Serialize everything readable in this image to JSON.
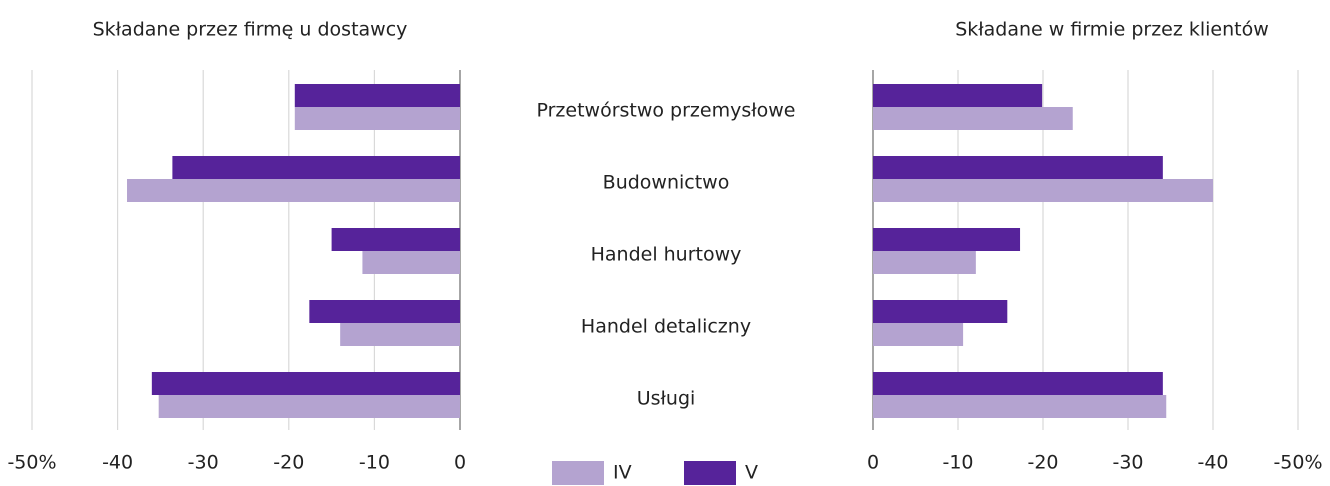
{
  "chart_data": [
    {
      "type": "bar",
      "orientation": "horizontal",
      "title": "Składane przez firmę u dostawcy",
      "categories": [
        "Przetwórstwo przemysłowe",
        "Budownictwo",
        "Handel hurtowy",
        "Handel detaliczny",
        "Usługi"
      ],
      "series": [
        {
          "name": "IV",
          "color": "#b4a3d0",
          "values": [
            -19.3,
            -38.9,
            -11.4,
            -14.0,
            -35.2
          ]
        },
        {
          "name": "V",
          "color": "#56239a",
          "values": [
            -19.3,
            -33.6,
            -15.0,
            -17.6,
            -36.0
          ]
        }
      ],
      "xlim": [
        -50,
        0
      ],
      "xticks": [
        {
          "value": -50,
          "label": "-50%"
        },
        -40,
        -30,
        -20,
        -10,
        0
      ],
      "grid": true
    },
    {
      "type": "bar",
      "orientation": "horizontal",
      "title": "Składane w firmie przez klientów",
      "series": [
        {
          "color": "#b4a3d0",
          "values": [
            -23.5,
            -40.0,
            -12.1,
            -10.6,
            -34.5
          ]
        },
        {
          "color": "#56239a",
          "values": [
            -19.9,
            -34.1,
            -17.3,
            -15.8,
            -34.1
          ]
        }
      ],
      "xlim": [
        0,
        -50
      ],
      "xticks": [
        0,
        -10,
        -20,
        -30,
        -40,
        {
          "value": -50,
          "label": "-50%"
        }
      ],
      "grid": true
    }
  ]
}
